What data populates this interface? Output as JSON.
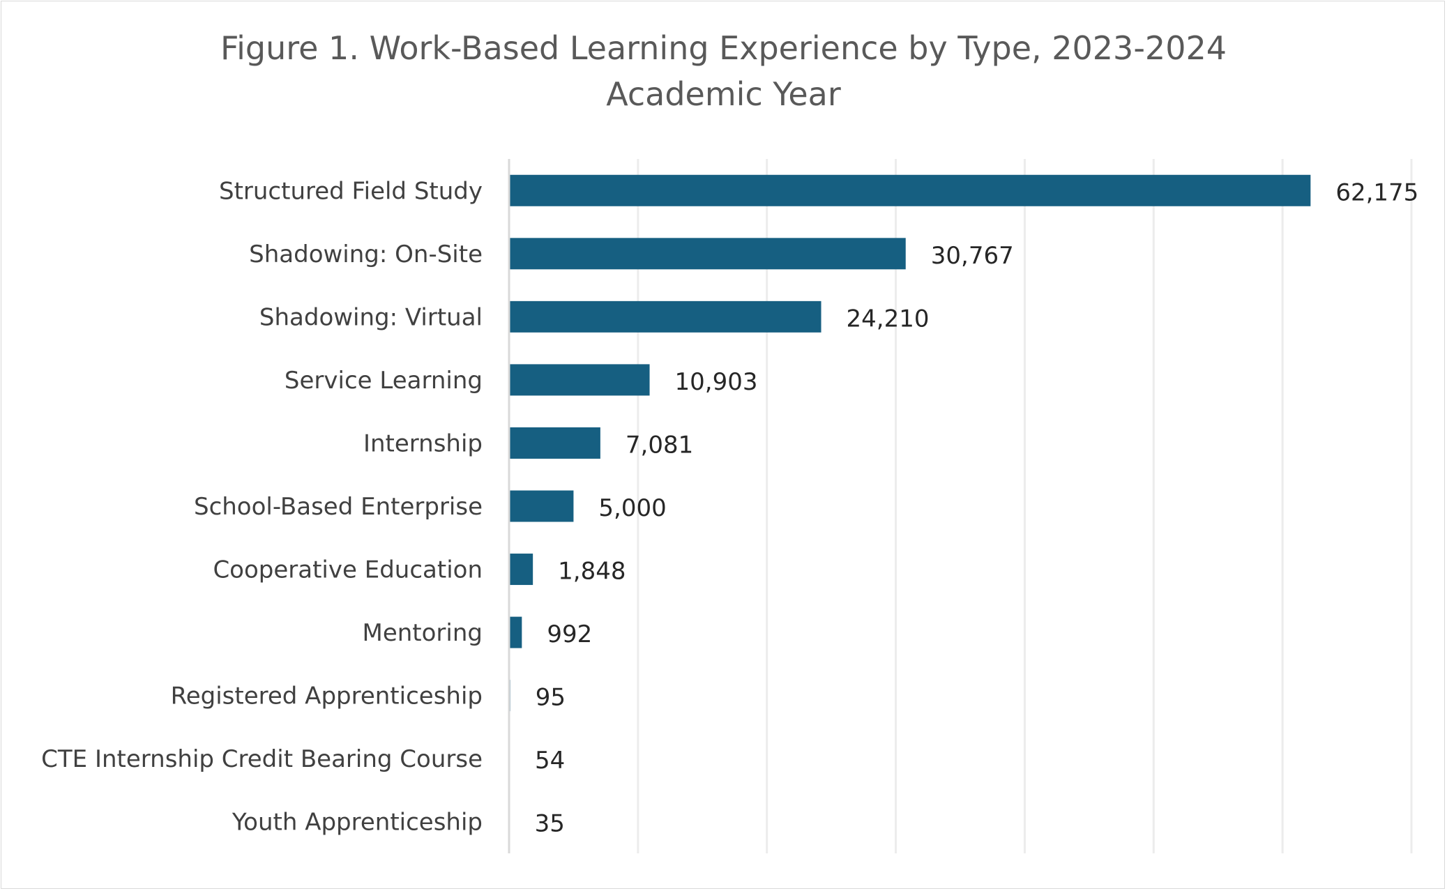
{
  "chart_data": {
    "type": "bar",
    "orientation": "horizontal",
    "title": "Figure 1. Work-Based Learning Experience by Type, 2023-2024",
    "title_line2": "Academic Year",
    "categories": [
      "Structured Field Study",
      "Shadowing: On-Site",
      "Shadowing: Virtual",
      "Service Learning",
      "Internship",
      "School-Based Enterprise",
      "Cooperative Education",
      "Mentoring",
      "Registered Apprenticeship",
      "CTE Internship Credit Bearing Course",
      "Youth Apprenticeship"
    ],
    "values": [
      62175,
      30767,
      24210,
      10903,
      7081,
      5000,
      1848,
      992,
      95,
      54,
      35
    ],
    "data_labels": [
      "62,175",
      "30,767",
      "24,210",
      "10,903",
      "7,081",
      "5,000",
      "1,848",
      "992",
      "95",
      "54",
      "35"
    ],
    "xlim": [
      0,
      70000
    ],
    "grid_step": 10000,
    "grid": true,
    "xlabel": "",
    "ylabel": "",
    "bar_color": "#165f81"
  }
}
